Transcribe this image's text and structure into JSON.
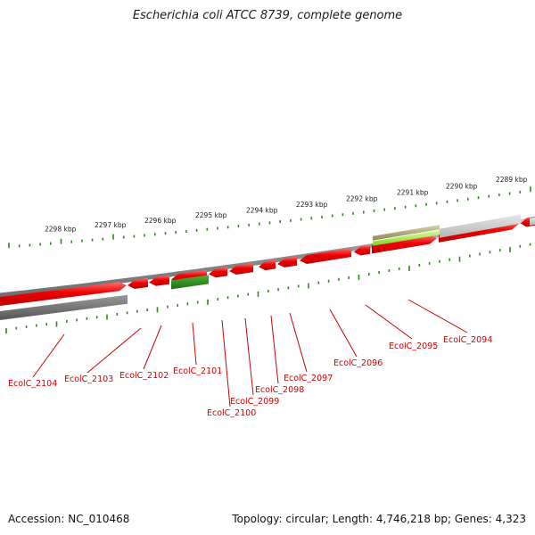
{
  "title": "Escherichia coli ATCC 8739, complete genome",
  "footer": {
    "accession": "Accession: NC_010468",
    "summary": "Topology: circular; Length: 4,746,218 bp; Genes: 4,323"
  },
  "colors": {
    "forward_gene": "#e80000",
    "reverse_gene": "#e80000",
    "green_gene": "#2e8b23",
    "lime_gene": "#9ae635",
    "olive_gene": "#b0ac80",
    "gray_dark": "#666666",
    "gray_light": "#c8c8c8",
    "tick": "#2a8a1a",
    "label": "#cc0000"
  },
  "scale_labels": [
    "2298 kbp",
    "2297 kbp",
    "2296 kbp",
    "2295 kbp",
    "2294 kbp",
    "2293 kbp",
    "2292 kbp",
    "2291 kbp",
    "2290 kbp",
    "2289 kbp"
  ],
  "gene_labels": [
    "EcolC_2104",
    "EcolC_2103",
    "EcolC_2102",
    "EcolC_2101",
    "EcolC_2100",
    "EcolC_2099",
    "EcolC_2098",
    "EcolC_2097",
    "EcolC_2096",
    "EcolC_2095",
    "EcolC_2094"
  ]
}
